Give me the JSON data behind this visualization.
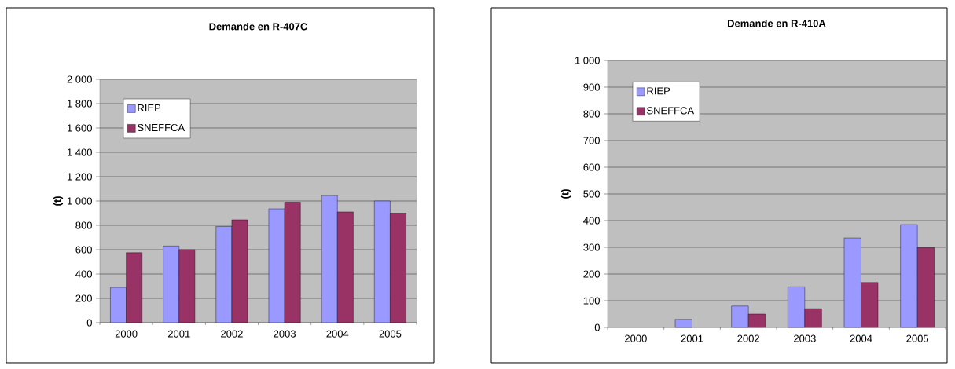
{
  "chart_data": [
    {
      "type": "bar",
      "title": "Demande en R-407C",
      "ylabel": "(t)",
      "categories": [
        "2000",
        "2001",
        "2002",
        "2003",
        "2004",
        "2005"
      ],
      "series": [
        {
          "name": "RIEP",
          "color": "#9999ff",
          "values": [
            290,
            630,
            790,
            935,
            1045,
            1000
          ]
        },
        {
          "name": "SNEFFCA",
          "color": "#993366",
          "values": [
            575,
            600,
            845,
            990,
            910,
            900
          ]
        }
      ],
      "ylim": [
        0,
        2000
      ],
      "yticks": [
        0,
        200,
        400,
        600,
        800,
        {
          "value": 1000,
          "label": "1 000"
        },
        {
          "value": 1200,
          "label": "1 200"
        },
        {
          "value": 1400,
          "label": "1 400"
        },
        {
          "value": 1600,
          "label": "1 600"
        },
        {
          "value": 1800,
          "label": "1 800"
        },
        {
          "value": 2000,
          "label": "2 000"
        }
      ],
      "grid": "y",
      "legend": "top left"
    },
    {
      "type": "bar",
      "title": "Demande en R-410A",
      "ylabel": "(t)",
      "categories": [
        "2000",
        "2001",
        "2002",
        "2003",
        "2004",
        "2005"
      ],
      "series": [
        {
          "name": "RIEP",
          "color": "#9999ff",
          "values": [
            null,
            30,
            80,
            152,
            335,
            385
          ]
        },
        {
          "name": "SNEFFCA",
          "color": "#993366",
          "values": [
            null,
            null,
            50,
            70,
            168,
            300
          ]
        }
      ],
      "ylim": [
        0,
        1000
      ],
      "yticks": [
        0,
        100,
        200,
        300,
        400,
        500,
        600,
        700,
        800,
        900,
        {
          "value": 1000,
          "label": "1 000"
        }
      ],
      "grid": "y",
      "legend": "top left"
    }
  ]
}
